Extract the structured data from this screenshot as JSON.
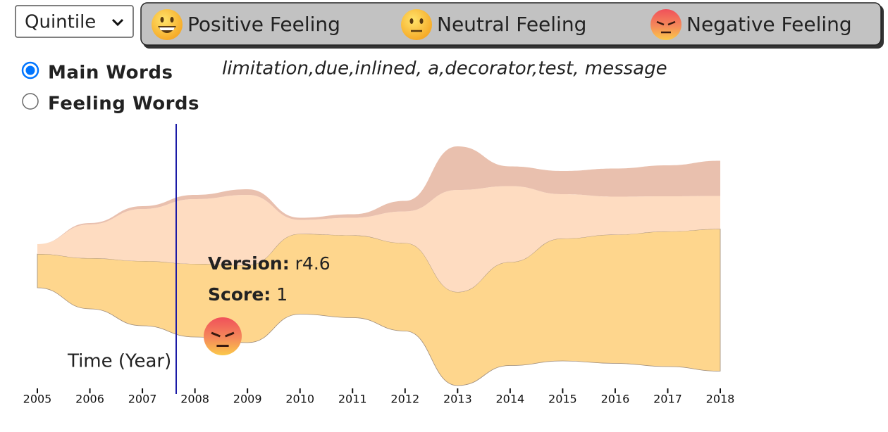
{
  "controls": {
    "dropdown": "Quintile",
    "radios": [
      {
        "label": "Main Words",
        "checked": true
      },
      {
        "label": "Feeling Words",
        "checked": false
      }
    ]
  },
  "keywords": "limitation,due,inlined, a,decorator,test, message",
  "tooltip": {
    "version_label": "Version:",
    "version": "r4.6",
    "score_label": "Score:",
    "score": 1
  },
  "chart_data": {
    "type": "stream",
    "x_label": "Time (Year)",
    "x": [
      2005,
      2006,
      2007,
      2008,
      2009,
      2010,
      2011,
      2012,
      2013,
      2014,
      2015,
      2016,
      2017,
      2018
    ],
    "series": [
      {
        "name": "Positive Feeling",
        "color": "#fed68d",
        "values": [
          48,
          72,
          92,
          104,
          110,
          114,
          117,
          125,
          133,
          147,
          174,
          183,
          192,
          202
        ]
      },
      {
        "name": "Neutral Feeling",
        "color": "#fedcc1",
        "values": [
          14,
          48,
          74,
          92,
          100,
          20,
          25,
          45,
          145,
          108,
          63,
          54,
          50,
          47
        ]
      },
      {
        "name": "Negative Feeling",
        "color": "#e9c0ae",
        "values": [
          0,
          2,
          4,
          6,
          8,
          3,
          5,
          15,
          62,
          28,
          33,
          40,
          44,
          50
        ]
      }
    ]
  }
}
